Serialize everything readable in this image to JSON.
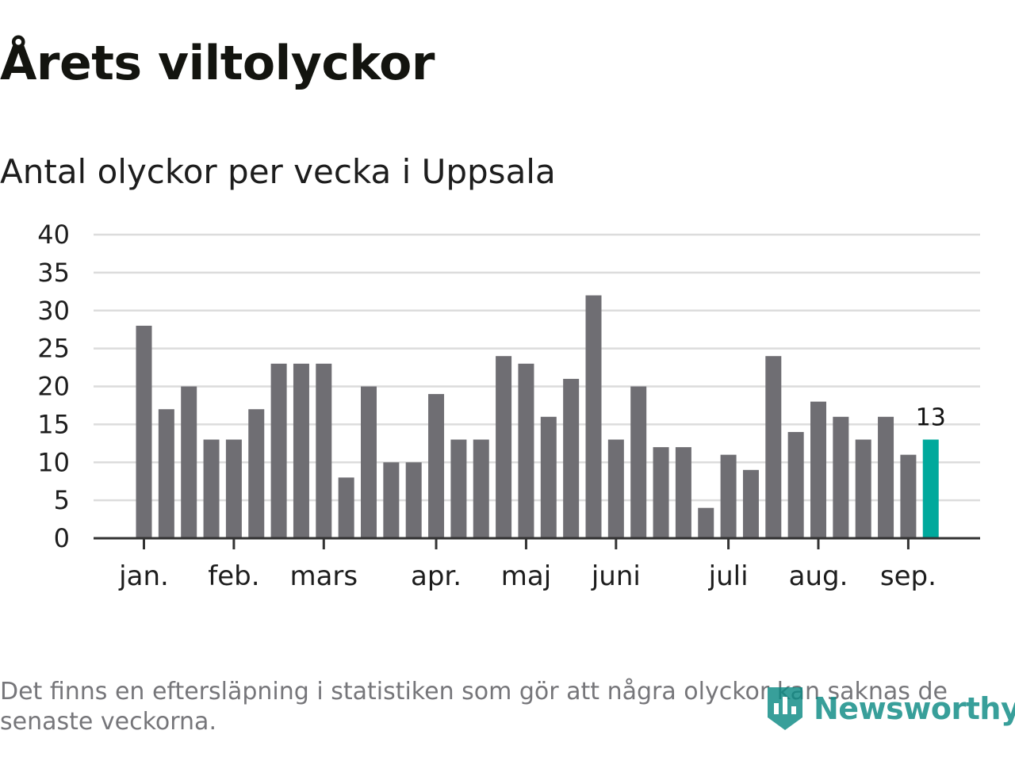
{
  "title": "Årets viltolyckor",
  "subtitle": "Antal olyckor per vecka i Uppsala",
  "footnote": "Det finns en eftersläpning i statistiken som gör att några olyckor kan saknas de senaste veckorna.",
  "brand": {
    "name": "Newsworthy",
    "icon": "newsworthy-logo-icon"
  },
  "colors": {
    "bar": "#6f6e73",
    "highlight": "#00a99c",
    "grid": "#dcdcdc",
    "axis": "#333333",
    "text": "#1d1d1d",
    "footnote": "#76767a",
    "brand": "#0d8a84"
  },
  "chart_data": {
    "type": "bar",
    "ylim": [
      0,
      40
    ],
    "yticks": [
      0,
      5,
      10,
      15,
      20,
      25,
      30,
      35,
      40
    ],
    "grid": true,
    "values": [
      28,
      17,
      20,
      13,
      13,
      17,
      23,
      23,
      23,
      8,
      20,
      10,
      10,
      19,
      13,
      13,
      24,
      23,
      16,
      21,
      32,
      13,
      20,
      12,
      12,
      4,
      11,
      9,
      24,
      14,
      18,
      16,
      13,
      16,
      11,
      13
    ],
    "month_labels": [
      {
        "label": "jan.",
        "bar_index": 0
      },
      {
        "label": "feb.",
        "bar_index": 4
      },
      {
        "label": "mars",
        "bar_index": 8
      },
      {
        "label": "apr.",
        "bar_index": 13
      },
      {
        "label": "maj",
        "bar_index": 17
      },
      {
        "label": "juni",
        "bar_index": 21
      },
      {
        "label": "juli",
        "bar_index": 26
      },
      {
        "label": "aug.",
        "bar_index": 30
      },
      {
        "label": "sep.",
        "bar_index": 34
      }
    ],
    "highlight_index": 35,
    "highlight_label": "13"
  }
}
